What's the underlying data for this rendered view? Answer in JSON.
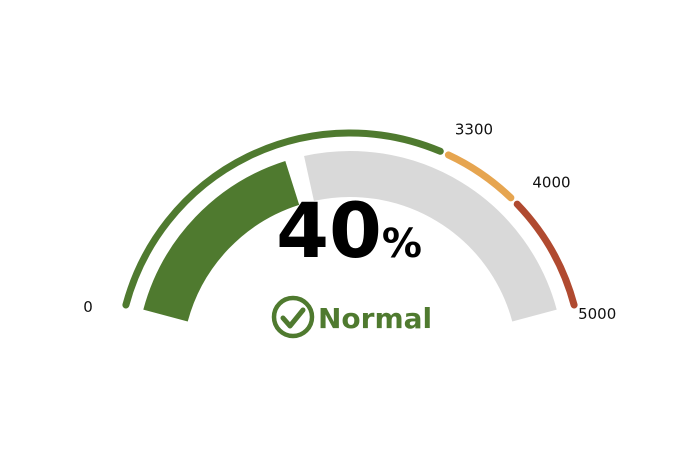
{
  "chart_data": {
    "type": "gauge",
    "min": 0,
    "max": 5000,
    "value_percent": 40,
    "value_display": "40",
    "unit": "%",
    "status": "Normal",
    "status_icon": "check-circle-icon",
    "colors": {
      "fill": "#4f7a2f",
      "track": "#d9d9d9",
      "status": "#4f7a2f"
    },
    "ranges": [
      {
        "from": 0,
        "to": 3300,
        "color": "#4f7a2f"
      },
      {
        "from": 3300,
        "to": 4000,
        "color": "#e6a550"
      },
      {
        "from": 4000,
        "to": 5000,
        "color": "#b04a30"
      }
    ],
    "ticks": [
      {
        "value": 0,
        "label": "0"
      },
      {
        "value": 3300,
        "label": "3300"
      },
      {
        "value": 4000,
        "label": "4000"
      },
      {
        "value": 5000,
        "label": "5000"
      }
    ]
  }
}
